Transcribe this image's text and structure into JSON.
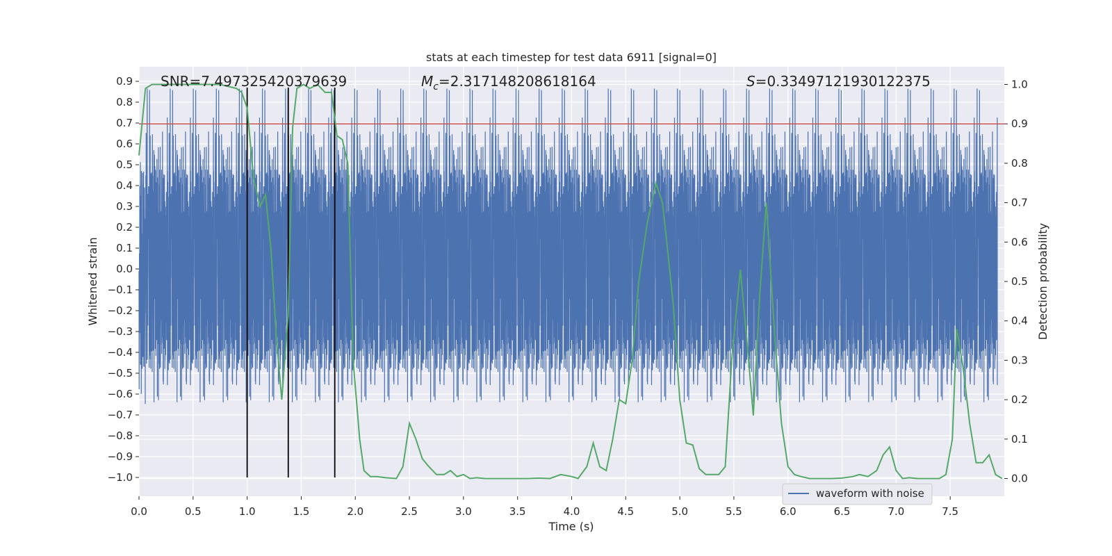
{
  "chart_data": {
    "type": "line",
    "title": "stats at each timestep for test data 6911 [signal=0]",
    "xlabel": "Time (s)",
    "ylabel_left": "Whitened strain",
    "ylabel_right": "Detection probability",
    "xlim": [
      0,
      8
    ],
    "ylim_left": [
      -1.09,
      0.97
    ],
    "ylim_right": [
      -0.045,
      1.045
    ],
    "x_ticks": [
      0.0,
      0.5,
      1.0,
      1.5,
      2.0,
      2.5,
      3.0,
      3.5,
      4.0,
      4.5,
      5.0,
      5.5,
      6.0,
      6.5,
      7.0,
      7.5
    ],
    "y_left_ticks": [
      0.9,
      0.8,
      0.7,
      0.6,
      0.5,
      0.4,
      0.3,
      0.2,
      0.1,
      0.0,
      -0.1,
      -0.2,
      -0.3,
      -0.4,
      -0.5,
      -0.6,
      -0.7,
      -0.8,
      -0.9,
      -1.0
    ],
    "y_right_ticks": [
      1.0,
      0.9,
      0.8,
      0.7,
      0.6,
      0.5,
      0.4,
      0.3,
      0.2,
      0.1,
      0.0
    ],
    "grid": true,
    "legend_position": "lower-right",
    "annotations": {
      "snr": "SNR=7.497325420379639",
      "mc_symbol": "M",
      "mc_sub": "c",
      "mc_value": "=2.317148208618164",
      "s_symbol": "S",
      "s_value": "=0.33497121930122375"
    },
    "threshold": {
      "value": 0.9,
      "axis": "right",
      "color": "#c44e52"
    },
    "vertical_lines": [
      {
        "x": 1.0,
        "y_top": 0.87,
        "y_bottom": -1.0
      },
      {
        "x": 1.38,
        "y_top": 0.87,
        "y_bottom": -1.0
      },
      {
        "x": 1.81,
        "y_top": 0.87,
        "y_bottom": -1.0
      }
    ],
    "series": [
      {
        "name": "waveform with noise",
        "axis": "left",
        "color": "#4c72b0",
        "envelope": {
          "core": 0.3,
          "typical": 0.48,
          "peak": 0.88,
          "min_peak": -0.99,
          "samples": 8192,
          "seed": 6911
        }
      },
      {
        "axis": "right",
        "color": "#55a868",
        "x": [
          0.0,
          0.06,
          0.12,
          0.2,
          0.3,
          0.45,
          0.6,
          0.75,
          0.9,
          0.95,
          1.0,
          1.06,
          1.12,
          1.17,
          1.22,
          1.27,
          1.32,
          1.38,
          1.42,
          1.46,
          1.52,
          1.58,
          1.65,
          1.72,
          1.78,
          1.83,
          1.88,
          1.93,
          1.98,
          2.04,
          2.08,
          2.14,
          2.2,
          2.28,
          2.38,
          2.44,
          2.5,
          2.56,
          2.62,
          2.68,
          2.75,
          2.82,
          2.88,
          2.94,
          3.0,
          3.06,
          3.12,
          3.2,
          3.3,
          3.4,
          3.5,
          3.6,
          3.7,
          3.8,
          3.9,
          4.0,
          4.06,
          4.14,
          4.2,
          4.26,
          4.32,
          4.38,
          4.44,
          4.5,
          4.56,
          4.62,
          4.7,
          4.78,
          4.84,
          4.88,
          4.94,
          5.0,
          5.06,
          5.12,
          5.18,
          5.24,
          5.3,
          5.36,
          5.42,
          5.48,
          5.56,
          5.62,
          5.68,
          5.74,
          5.8,
          5.88,
          5.94,
          6.0,
          6.06,
          6.12,
          6.2,
          6.3,
          6.4,
          6.5,
          6.6,
          6.66,
          6.74,
          6.82,
          6.88,
          6.94,
          7.0,
          7.06,
          7.12,
          7.2,
          7.3,
          7.4,
          7.46,
          7.52,
          7.56,
          7.62,
          7.68,
          7.74,
          7.8,
          7.86,
          7.92,
          7.98
        ],
        "values": [
          0.82,
          0.99,
          1.0,
          1.0,
          1.0,
          1.0,
          1.0,
          1.0,
          0.99,
          0.98,
          0.94,
          0.76,
          0.69,
          0.72,
          0.58,
          0.36,
          0.2,
          0.42,
          0.89,
          0.99,
          1.0,
          0.99,
          1.0,
          0.98,
          0.98,
          0.87,
          0.86,
          0.8,
          0.3,
          0.1,
          0.02,
          0.005,
          0.005,
          0.002,
          0.0,
          0.03,
          0.14,
          0.1,
          0.05,
          0.03,
          0.01,
          0.01,
          0.02,
          0.005,
          0.01,
          0.0,
          0.002,
          0.0,
          0.0,
          0.0,
          0.0,
          0.0,
          0.001,
          0.0,
          0.01,
          0.005,
          0.0,
          0.03,
          0.09,
          0.03,
          0.02,
          0.1,
          0.2,
          0.19,
          0.3,
          0.5,
          0.65,
          0.75,
          0.7,
          0.6,
          0.44,
          0.2,
          0.09,
          0.085,
          0.025,
          0.01,
          0.01,
          0.01,
          0.03,
          0.3,
          0.53,
          0.35,
          0.16,
          0.47,
          0.7,
          0.35,
          0.14,
          0.03,
          0.01,
          0.005,
          0.0,
          0.0,
          0.0,
          0.001,
          0.005,
          0.01,
          0.005,
          0.02,
          0.06,
          0.08,
          0.02,
          0.0,
          0.002,
          0.0,
          0.0,
          0.0,
          0.01,
          0.1,
          0.38,
          0.28,
          0.14,
          0.04,
          0.04,
          0.06,
          0.01,
          0.0
        ]
      }
    ]
  }
}
